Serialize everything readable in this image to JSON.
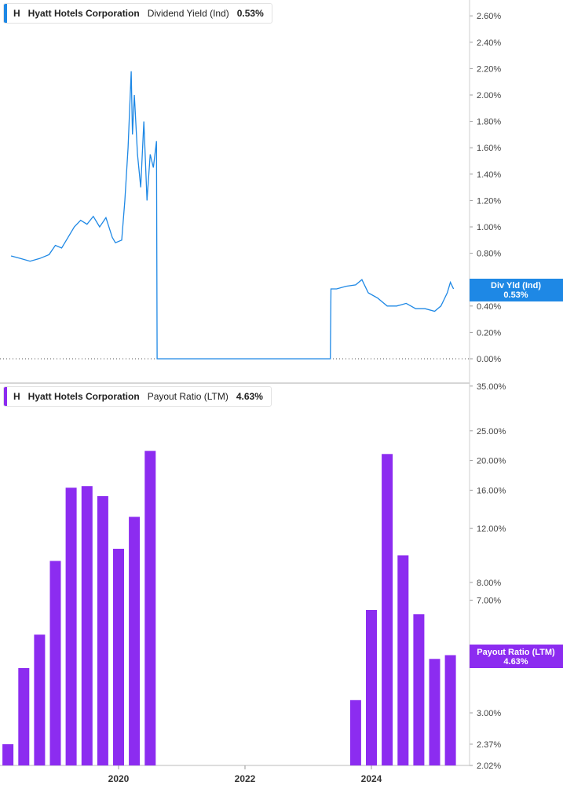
{
  "chart_data": [
    {
      "type": "line",
      "panel": "top",
      "symbol": "H",
      "company": "Hyatt Hotels Corporation",
      "metric": "Dividend Yield (Ind)",
      "current_value": "0.53%",
      "tag_label": "Div Yld (Ind)",
      "color": "#1e88e5",
      "y_ticks": [
        "2.60%",
        "2.40%",
        "2.20%",
        "2.00%",
        "1.80%",
        "1.60%",
        "1.40%",
        "1.20%",
        "1.00%",
        "0.80%",
        "0.40%",
        "0.20%",
        "0.00%"
      ],
      "ylim": [
        0,
        2.7
      ],
      "x_ticks": [
        "2020",
        "2022",
        "2024"
      ],
      "x": [
        2018.3,
        2018.45,
        2018.6,
        2018.75,
        2018.9,
        2019.0,
        2019.1,
        2019.2,
        2019.3,
        2019.4,
        2019.5,
        2019.6,
        2019.7,
        2019.8,
        2019.9,
        2019.95,
        2020.05,
        2020.1,
        2020.15,
        2020.2,
        2020.22,
        2020.25,
        2020.3,
        2020.35,
        2020.4,
        2020.45,
        2020.5,
        2020.55,
        2020.6,
        2020.61,
        2021.5,
        2023.35,
        2023.36,
        2023.45,
        2023.6,
        2023.75,
        2023.85,
        2023.95,
        2024.1,
        2024.25,
        2024.4,
        2024.55,
        2024.7,
        2024.85,
        2025.0,
        2025.1,
        2025.15,
        2025.2,
        2025.25,
        2025.3
      ],
      "y": [
        0.78,
        0.76,
        0.74,
        0.76,
        0.79,
        0.86,
        0.84,
        0.92,
        1.0,
        1.05,
        1.02,
        1.08,
        1.0,
        1.07,
        0.92,
        0.88,
        0.9,
        1.2,
        1.6,
        2.18,
        1.7,
        2.0,
        1.55,
        1.3,
        1.8,
        1.2,
        1.55,
        1.45,
        1.65,
        0.0,
        0.0,
        0.0,
        0.53,
        0.53,
        0.55,
        0.56,
        0.6,
        0.5,
        0.46,
        0.4,
        0.4,
        0.42,
        0.38,
        0.38,
        0.36,
        0.4,
        0.45,
        0.5,
        0.58,
        0.53
      ]
    },
    {
      "type": "bar",
      "panel": "bottom",
      "symbol": "H",
      "company": "Hyatt Hotels Corporation",
      "metric": "Payout Ratio (LTM)",
      "current_value": "4.63%",
      "tag_label": "Payout Ratio (LTM)",
      "color": "#8c2cf0",
      "y_scale": "log",
      "y_ticks": [
        "35.00%",
        "25.00%",
        "20.00%",
        "16.00%",
        "12.00%",
        "8.00%",
        "7.00%",
        "3.00%",
        "2.37%",
        "2.02%"
      ],
      "ylim": [
        2.02,
        36
      ],
      "x_ticks": [
        "2020",
        "2022",
        "2024"
      ],
      "x": [
        2018.25,
        2018.5,
        2018.75,
        2019.0,
        2019.25,
        2019.5,
        2019.75,
        2020.0,
        2020.25,
        2020.5,
        2023.75,
        2024.0,
        2024.25,
        2024.5,
        2024.75,
        2025.0,
        2025.25
      ],
      "values": [
        2.37,
        4.2,
        5.4,
        9.4,
        16.3,
        16.5,
        15.3,
        10.3,
        13.1,
        21.5,
        3.3,
        6.5,
        21.0,
        9.8,
        6.3,
        4.5,
        4.63
      ]
    }
  ]
}
